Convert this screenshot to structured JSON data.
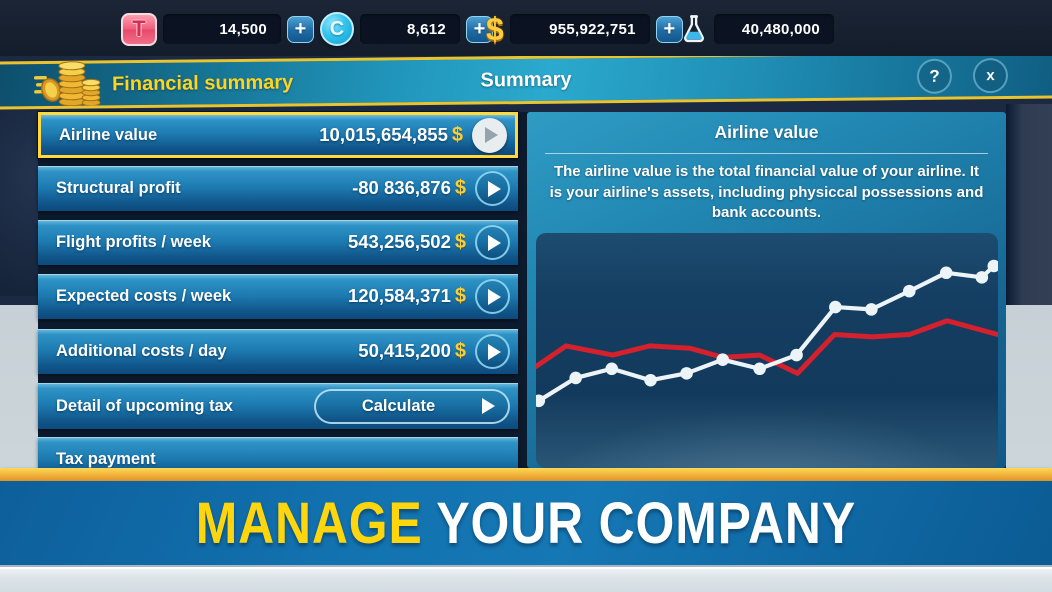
{
  "topbar": {
    "currencies": [
      {
        "name": "travel-cards",
        "icon": "T",
        "value": "14,500",
        "has_add": true
      },
      {
        "name": "coins",
        "icon": "C",
        "value": "8,612",
        "has_add": true
      },
      {
        "name": "dollars",
        "icon": "$",
        "value": "955,922,751",
        "has_add": true
      },
      {
        "name": "research",
        "icon": "flask",
        "value": "40,480,000",
        "has_add": false
      }
    ],
    "add_label": "+"
  },
  "header": {
    "breadcrumb": "Financial summary",
    "title": "Summary",
    "help_label": "?",
    "close_label": "x"
  },
  "finance_rows": [
    {
      "label": "Airline value",
      "value": "10,015,654,855",
      "currency": "$",
      "selected": true
    },
    {
      "label": "Structural profit",
      "value": "-80 836,876",
      "currency": "$",
      "selected": false
    },
    {
      "label": "Flight profits / week",
      "value": "543,256,502",
      "currency": "$",
      "selected": false
    },
    {
      "label": "Expected costs / week",
      "value": "120,584,371",
      "currency": "$",
      "selected": false
    },
    {
      "label": "Additional costs / day",
      "value": "50,415,200",
      "currency": "$",
      "selected": false
    },
    {
      "label": "Detail of upcoming tax",
      "button": "Calculate",
      "selected": false
    },
    {
      "label": "Tax payment",
      "selected": false
    }
  ],
  "detail": {
    "title": "Airline value",
    "description": "The airline value is the total financial value of your airline. It is your airline's assets, including physiccal possessions and bank accounts."
  },
  "chart_data": {
    "type": "line",
    "title": "Airline value",
    "xlabel": "",
    "ylabel": "",
    "axes_visible": false,
    "grid": false,
    "legend": "none",
    "value_scale": "relative 0-100 (no axis labels shown in game)",
    "series": [
      {
        "name": "red-line",
        "color": "#d5202e",
        "width": 5,
        "markers": false,
        "points": [
          {
            "x": 0,
            "v": 43
          },
          {
            "x": 6.5,
            "v": 52
          },
          {
            "x": 16.6,
            "v": 48
          },
          {
            "x": 24.6,
            "v": 52
          },
          {
            "x": 33.3,
            "v": 51
          },
          {
            "x": 40.4,
            "v": 47
          },
          {
            "x": 48.4,
            "v": 48
          },
          {
            "x": 56.6,
            "v": 40
          },
          {
            "x": 64.6,
            "v": 57
          },
          {
            "x": 72.8,
            "v": 56
          },
          {
            "x": 80.8,
            "v": 57
          },
          {
            "x": 89,
            "v": 63
          },
          {
            "x": 100,
            "v": 57
          }
        ]
      },
      {
        "name": "white-line",
        "color": "#edf4f7",
        "width": 4.2,
        "markers": true,
        "points": [
          {
            "x": 0.6,
            "v": 28
          },
          {
            "x": 8.6,
            "v": 38
          },
          {
            "x": 16.4,
            "v": 42
          },
          {
            "x": 24.8,
            "v": 37
          },
          {
            "x": 32.6,
            "v": 40
          },
          {
            "x": 40.4,
            "v": 46
          },
          {
            "x": 48.4,
            "v": 42
          },
          {
            "x": 56.4,
            "v": 48
          },
          {
            "x": 64.8,
            "v": 69
          },
          {
            "x": 72.6,
            "v": 68
          },
          {
            "x": 80.8,
            "v": 76
          },
          {
            "x": 88.8,
            "v": 84
          },
          {
            "x": 96.5,
            "v": 82
          },
          {
            "x": 99.1,
            "v": 87
          }
        ]
      }
    ]
  },
  "banner": {
    "word1": "MANAGE",
    "word2": " YOUR COMPANY"
  },
  "colors": {
    "accent_yellow": "#ffd41e",
    "row_blue_top": "#2f93c6",
    "row_blue_bottom": "#0c4a7d",
    "selected_border": "#ffd93e",
    "banner_blue": "#1273b0",
    "gold_stripe": "#f2b03c",
    "chart_red": "#d5202e",
    "chart_white": "#edf4f7"
  }
}
